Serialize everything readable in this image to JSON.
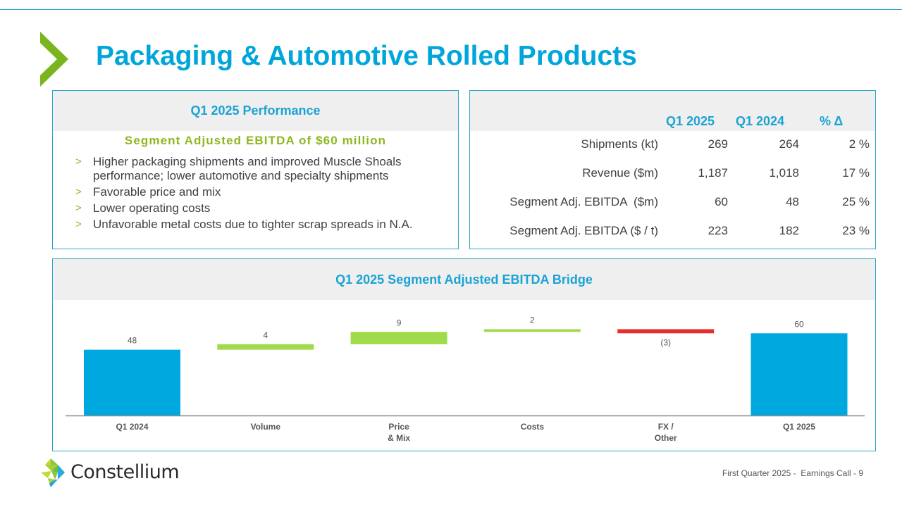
{
  "title": "Packaging & Automotive Rolled Products",
  "performance": {
    "heading": "Q1 2025 Performance",
    "highlight": "Segment Adjusted EBITDA of $60 million",
    "bullet_glyph": ">",
    "bullets": [
      "Higher packaging shipments and improved Muscle Shoals performance; lower automotive and specialty shipments",
      "Favorable price and mix",
      "Lower operating costs",
      "Unfavorable metal costs due to tighter scrap spreads in N.A."
    ]
  },
  "kpi_table": {
    "columns": [
      "Q1 2025",
      "Q1 2024",
      "% Δ"
    ],
    "rows": [
      {
        "label": "Shipments (kt)",
        "q1_2025": "269",
        "q1_2024": "264",
        "pct": "2 %"
      },
      {
        "label": "Revenue ($m)",
        "q1_2025": "1,187",
        "q1_2024": "1,018",
        "pct": "17 %"
      },
      {
        "label": "Segment Adj. EBITDA  ($m)",
        "q1_2025": "60",
        "q1_2024": "48",
        "pct": "25 %"
      },
      {
        "label": "Segment Adj. EBITDA ($ / t)",
        "q1_2025": "223",
        "q1_2024": "182",
        "pct": "23 %"
      }
    ]
  },
  "chart_data": {
    "type": "bar",
    "subtype": "waterfall",
    "title": "Q1 2025 Segment Adjusted EBITDA Bridge",
    "xlabel": "",
    "ylabel": "",
    "ylim": [
      0,
      70
    ],
    "grid": false,
    "categories": [
      "Q1 2024",
      "Volume",
      "Price\n& Mix",
      "Costs",
      "FX /\nOther",
      "Q1 2025"
    ],
    "values": [
      48,
      4,
      9,
      2,
      -3,
      60
    ],
    "kinds": [
      "total",
      "delta",
      "delta",
      "delta",
      "delta",
      "total"
    ],
    "data_labels": [
      "48",
      "4",
      "9",
      "2",
      "(3)",
      "60"
    ],
    "colors": {
      "total": "#00a8e0",
      "increase": "#9fdb4a",
      "decrease": "#e62e2e"
    }
  },
  "footer": {
    "brand": "Constellium",
    "text": "First Quarter 2025 -  Earnings Call - 9"
  },
  "colors": {
    "accent_blue": "#00a6d9",
    "accent_green": "#8cb820",
    "border": "#2ba6c4"
  }
}
